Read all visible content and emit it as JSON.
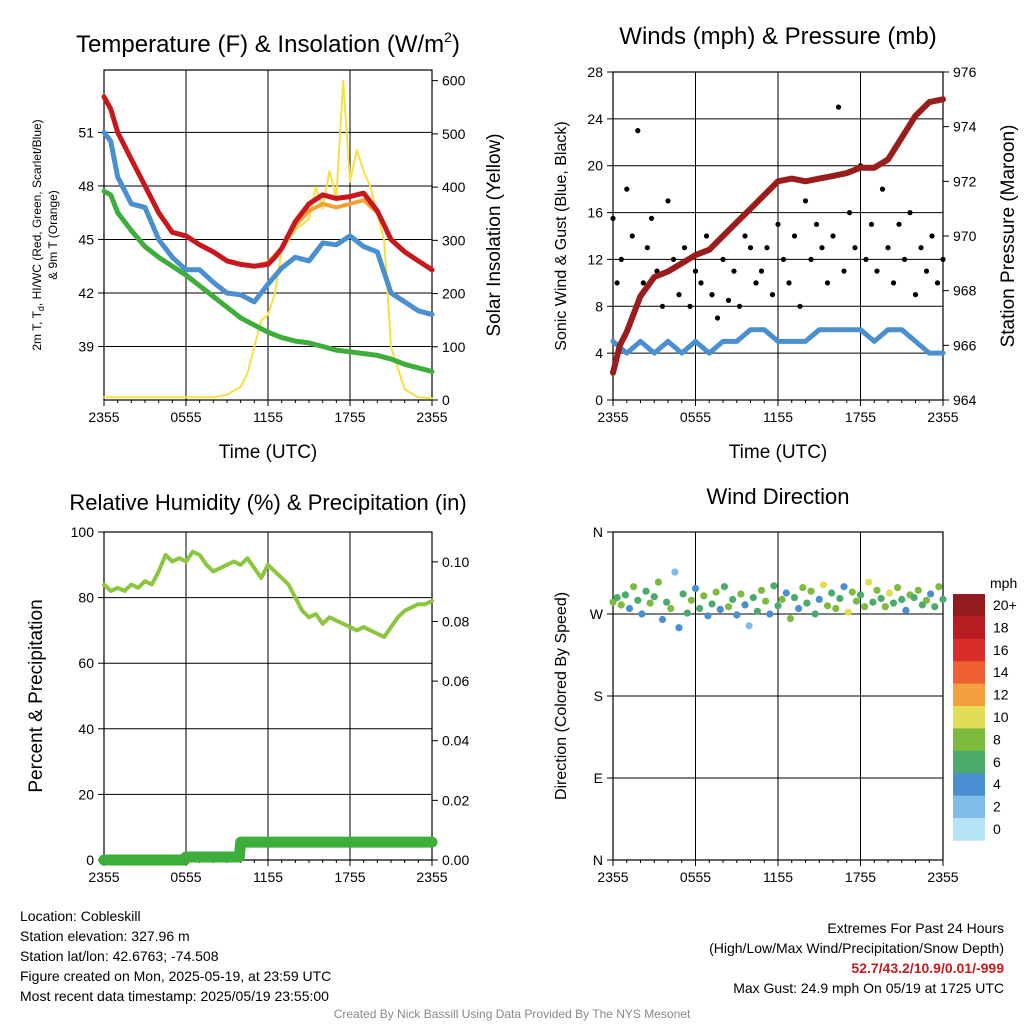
{
  "colors": {
    "temp_red": "#c8181e",
    "dewpoint_green": "#3eae3a",
    "hiwc_scarlet": "#e8401c",
    "temp9m_orange": "#f3a132",
    "wind_blue": "#4a8fcf",
    "solar_yellow": "#f8e040",
    "pressure_maroon": "#9b1c1c",
    "gust_black": "#000000",
    "rh_lightgreen": "#8cc63f",
    "precip_green": "#3eae3a",
    "extremes_red": "#c8181e"
  },
  "chart_data": [
    {
      "type": "line",
      "title": "Temperature (F) & Insolation (W/m²)",
      "title_main": "Temperature (F) & Insolation (W/m",
      "title_sup": "2",
      "title_end": ")",
      "xlabel": "Time (UTC)",
      "ylabel_left_line1": "2m T, T",
      "ylabel_left_sub": "d",
      "ylabel_left_line1_end": ", HI/WC (Red, Green, Scarlet/Blue)",
      "ylabel_left_line2": "& 9m T (Orange)",
      "ylabel_right": "Solar Insolation (Yellow)",
      "xticks": [
        "2355",
        "0555",
        "1155",
        "1755",
        "2355"
      ],
      "x_range_hours": [
        0,
        24
      ],
      "ylim_left": [
        36,
        54.5
      ],
      "yticks_left": [
        39,
        42,
        45,
        48,
        51
      ],
      "ylim_right": [
        0,
        620
      ],
      "yticks_right": [
        0,
        100,
        200,
        300,
        400,
        500,
        600
      ],
      "grid": true,
      "series": [
        {
          "name": "2m T",
          "axis": "left",
          "x": [
            0,
            0.5,
            1,
            2,
            3,
            4,
            5,
            6,
            7,
            8,
            9,
            10,
            11,
            12,
            12.5,
            13,
            14,
            15,
            16,
            17,
            18,
            19,
            20,
            21,
            22,
            23,
            24
          ],
          "values": [
            53,
            52.3,
            51,
            49.5,
            48,
            46.5,
            45.4,
            45.2,
            44.7,
            44.3,
            43.8,
            43.6,
            43.5,
            43.6,
            44,
            44.5,
            46,
            47,
            47.5,
            47.3,
            47.4,
            47.6,
            46.6,
            45,
            44.3,
            43.8,
            43.3
          ]
        },
        {
          "name": "Wind chill",
          "axis": "left",
          "x": [
            0,
            0.5,
            1,
            2,
            3,
            4,
            5,
            6,
            7,
            8,
            9,
            10,
            11,
            12,
            13,
            14,
            15,
            16,
            17,
            18,
            19,
            20,
            21,
            22,
            23,
            24
          ],
          "values": [
            51,
            50.5,
            48.5,
            47,
            46.8,
            45,
            44,
            43.3,
            43.3,
            42.6,
            42,
            41.9,
            41.5,
            42.5,
            43.4,
            44,
            43.8,
            44.8,
            44.7,
            45.2,
            44.6,
            44.3,
            42,
            41.5,
            41,
            40.8
          ]
        },
        {
          "name": "Dewpoint",
          "axis": "left",
          "x": [
            0,
            0.5,
            1,
            2,
            3,
            4,
            5,
            6,
            7,
            8,
            9,
            10,
            11,
            12,
            13,
            14,
            15,
            16,
            17,
            18,
            19,
            20,
            21,
            22,
            23,
            24
          ],
          "values": [
            47.7,
            47.5,
            46.5,
            45.5,
            44.6,
            44,
            43.5,
            43,
            42.4,
            41.8,
            41.2,
            40.6,
            40.2,
            39.8,
            39.5,
            39.3,
            39.2,
            39,
            38.8,
            38.7,
            38.6,
            38.5,
            38.3,
            38,
            37.8,
            37.6
          ]
        },
        {
          "name": "9m T",
          "axis": "left",
          "x": [
            11,
            12,
            13,
            14,
            15,
            16,
            17,
            18,
            19,
            20
          ],
          "values": [
            43.5,
            43.7,
            44.5,
            45.8,
            46.6,
            47,
            46.8,
            47,
            47.2,
            46.5
          ]
        },
        {
          "name": "Solar",
          "axis": "right",
          "x": [
            0,
            8,
            9,
            10,
            10.5,
            11,
            11.5,
            12,
            12.5,
            13,
            13.5,
            14,
            14.5,
            15,
            15.5,
            16,
            16.5,
            17,
            17.5,
            18,
            18.5,
            19,
            19.5,
            20,
            20.5,
            21,
            22,
            23,
            24
          ],
          "values": [
            5,
            5,
            10,
            25,
            50,
            100,
            150,
            160,
            200,
            280,
            300,
            320,
            330,
            340,
            400,
            360,
            430,
            380,
            600,
            410,
            470,
            430,
            400,
            350,
            300,
            100,
            20,
            5,
            3
          ]
        }
      ]
    },
    {
      "type": "scatter",
      "title": "Winds (mph) & Pressure (mb)",
      "xlabel": "Time (UTC)",
      "ylabel_left": "Sonic Wind & Gust (Blue, Black)",
      "ylabel_right": "Station Pressure (Maroon)",
      "xticks": [
        "2355",
        "0555",
        "1155",
        "1755",
        "2355"
      ],
      "x_range_hours": [
        0,
        24
      ],
      "ylim_left": [
        0,
        28
      ],
      "yticks_left": [
        0,
        4,
        8,
        12,
        16,
        20,
        24,
        28
      ],
      "ylim_right": [
        964,
        976
      ],
      "yticks_right": [
        964,
        966,
        968,
        970,
        972,
        974,
        976
      ],
      "grid": true,
      "series": [
        {
          "name": "Station pressure",
          "axis": "right",
          "x": [
            0,
            0.5,
            1,
            2,
            3,
            4,
            5,
            6,
            7,
            8,
            9,
            10,
            11,
            12,
            13,
            14,
            15,
            16,
            17,
            18,
            19,
            20,
            21,
            22,
            23,
            24
          ],
          "values": [
            965,
            966,
            966.5,
            967.8,
            968.5,
            968.7,
            969,
            969.3,
            969.5,
            970,
            970.5,
            971,
            971.5,
            972,
            972.1,
            972,
            972.1,
            972.2,
            972.3,
            972.5,
            972.5,
            972.8,
            973.6,
            974.4,
            974.9,
            975
          ]
        },
        {
          "name": "Sonic wind",
          "axis": "left",
          "x": [
            0,
            1,
            2,
            3,
            4,
            5,
            6,
            7,
            8,
            9,
            10,
            11,
            12,
            13,
            14,
            15,
            16,
            17,
            18,
            19,
            20,
            21,
            22,
            23,
            24
          ],
          "values": [
            5,
            4,
            5,
            4,
            5,
            4,
            5,
            4,
            5,
            5,
            6,
            6,
            5,
            5,
            5,
            6,
            6,
            6,
            6,
            5,
            6,
            6,
            5,
            4,
            4
          ]
        },
        {
          "name": "Gust",
          "axis": "left",
          "x": [
            0,
            0.3,
            0.6,
            1,
            1.4,
            1.8,
            2.2,
            2.5,
            2.8,
            3.2,
            3.6,
            4,
            4.4,
            4.8,
            5.2,
            5.6,
            6,
            6.4,
            6.8,
            7.2,
            7.6,
            8,
            8.4,
            8.8,
            9.2,
            9.6,
            10,
            10.4,
            10.8,
            11.2,
            11.6,
            12,
            12.4,
            12.8,
            13.2,
            13.6,
            14,
            14.4,
            14.8,
            15.2,
            15.6,
            16,
            16.4,
            16.8,
            17.2,
            17.6,
            18,
            18.4,
            18.8,
            19.2,
            19.6,
            20,
            20.4,
            20.8,
            21.2,
            21.6,
            22,
            22.4,
            22.8,
            23.2,
            23.6,
            24
          ],
          "values": [
            15.5,
            10,
            12,
            18,
            14,
            23,
            10,
            13,
            15.5,
            11,
            8,
            17,
            12,
            9,
            13,
            8,
            11,
            10,
            14,
            9,
            7,
            12,
            8.5,
            11,
            8,
            14,
            13,
            10,
            11,
            13,
            9,
            15,
            12,
            10,
            14,
            8,
            17,
            12,
            15,
            13,
            10,
            14,
            25,
            11,
            16,
            13,
            20,
            12,
            15,
            11,
            18,
            13,
            10,
            15,
            12,
            16,
            9,
            13,
            11,
            14,
            10,
            12
          ]
        }
      ]
    },
    {
      "type": "line",
      "title": "Relative Humidity (%) & Precipitation (in)",
      "xlabel": "",
      "ylabel_left": "Percent & Precipitation",
      "xticks": [
        "2355",
        "0555",
        "1155",
        "1755",
        "2355"
      ],
      "x_range_hours": [
        0,
        24
      ],
      "ylim_left": [
        0,
        100
      ],
      "yticks_left": [
        0,
        20,
        40,
        60,
        80,
        100
      ],
      "ylim_right": [
        0,
        0.11
      ],
      "yticks_right": [
        "0.00",
        "0.02",
        "0.04",
        "0.06",
        "0.08",
        "0.10"
      ],
      "grid": true,
      "series": [
        {
          "name": "RH",
          "axis": "left",
          "x": [
            0,
            0.5,
            1,
            1.5,
            2,
            2.5,
            3,
            3.5,
            4,
            4.5,
            5,
            5.5,
            6,
            6.5,
            7,
            7.5,
            8,
            8.5,
            9,
            9.5,
            10,
            10.5,
            11,
            11.5,
            12,
            12.5,
            13,
            13.5,
            14,
            14.5,
            15,
            15.5,
            16,
            16.5,
            17,
            17.5,
            18,
            18.5,
            19,
            19.5,
            20,
            20.5,
            21,
            21.5,
            22,
            22.5,
            23,
            23.5,
            24
          ],
          "values": [
            84,
            82,
            83,
            82,
            84,
            83,
            85,
            84,
            88,
            93,
            91,
            92,
            91,
            94,
            93,
            90,
            88,
            89,
            90,
            91,
            90,
            92,
            89,
            86,
            90,
            88,
            86,
            84,
            80,
            76,
            74,
            75,
            72,
            74,
            73,
            72,
            71,
            70,
            71,
            70,
            69,
            68,
            71,
            74,
            76,
            77,
            78,
            78,
            79
          ]
        },
        {
          "name": "Precipitation",
          "axis": "right",
          "x": [
            0,
            5.9,
            6,
            9.9,
            10,
            24
          ],
          "values": [
            0,
            0,
            0.001,
            0.001,
            0.006,
            0.006
          ]
        }
      ]
    },
    {
      "type": "scatter",
      "title": "Wind Direction",
      "xlabel": "",
      "ylabel_left": "Direction (Colored By Speed)",
      "xticks": [
        "2355",
        "0555",
        "1155",
        "1755",
        "2355"
      ],
      "x_range_hours": [
        0,
        24
      ],
      "ylim": [
        0,
        360
      ],
      "yticks": [
        "N",
        "E",
        "S",
        "W",
        "N"
      ],
      "yticks_deg": [
        0,
        90,
        180,
        270,
        360
      ],
      "grid": true,
      "colorbar_title": "mph",
      "colorbar_labels": [
        "0",
        "2",
        "4",
        "6",
        "8",
        "10",
        "12",
        "14",
        "16",
        "18",
        "20+"
      ],
      "colorbar_colors": [
        "#b7e3f7",
        "#7fbde8",
        "#4a8fcf",
        "#4aab6b",
        "#7dbb3e",
        "#e3dc55",
        "#f5a040",
        "#ee6030",
        "#d92d2a",
        "#b81d24",
        "#931b1e"
      ],
      "series": [
        {
          "name": "Direction",
          "x": [
            0,
            0.3,
            0.6,
            0.9,
            1.2,
            1.5,
            1.8,
            2.1,
            2.4,
            2.7,
            3,
            3.3,
            3.6,
            3.9,
            4.2,
            4.5,
            4.8,
            5.1,
            5.4,
            5.7,
            6,
            6.3,
            6.6,
            6.9,
            7.2,
            7.5,
            7.8,
            8.1,
            8.4,
            8.7,
            9,
            9.3,
            9.6,
            9.9,
            10.2,
            10.5,
            10.8,
            11.1,
            11.4,
            11.7,
            12,
            12.3,
            12.6,
            12.9,
            13.2,
            13.5,
            13.8,
            14.1,
            14.4,
            14.7,
            15,
            15.3,
            15.6,
            15.9,
            16.2,
            16.5,
            16.8,
            17.1,
            17.4,
            17.7,
            18,
            18.3,
            18.6,
            18.9,
            19.2,
            19.5,
            19.8,
            20.1,
            20.4,
            20.7,
            21,
            21.3,
            21.6,
            21.9,
            22.2,
            22.5,
            22.8,
            23.1,
            23.4,
            23.7,
            24
          ],
          "values": [
            283,
            288,
            280,
            291,
            276,
            300,
            285,
            270,
            295,
            282,
            289,
            305,
            264,
            283,
            276,
            316,
            255,
            292,
            271,
            285,
            298,
            276,
            290,
            268,
            281,
            294,
            275,
            300,
            278,
            286,
            269,
            292,
            280,
            257,
            288,
            273,
            296,
            284,
            270,
            301,
            279,
            286,
            293,
            265,
            288,
            276,
            299,
            282,
            295,
            270,
            286,
            302,
            279,
            293,
            276,
            287,
            300,
            272,
            294,
            284,
            291,
            278,
            305,
            283,
            296,
            287,
            278,
            293,
            282,
            299,
            286,
            274,
            291,
            288,
            296,
            280,
            285,
            292,
            278,
            300,
            286
          ],
          "speeds": [
            7,
            5,
            8,
            6,
            4,
            7,
            5,
            3,
            6,
            8,
            5,
            7,
            3,
            6,
            8,
            2,
            4,
            6,
            5,
            7,
            3,
            5,
            8,
            4,
            6,
            7,
            3,
            5,
            8,
            6,
            4,
            7,
            3,
            2,
            6,
            5,
            7,
            8,
            4,
            6,
            5,
            7,
            3,
            8,
            6,
            4,
            7,
            5,
            8,
            6,
            3,
            9,
            7,
            5,
            8,
            6,
            4,
            10,
            7,
            8,
            5,
            7,
            9,
            6,
            8,
            5,
            7,
            10,
            6,
            8,
            5,
            4,
            7,
            6,
            8,
            5,
            7,
            3,
            6,
            8,
            5
          ]
        }
      ]
    }
  ],
  "info": {
    "location": "Location: Cobleskill",
    "elevation": "Station elevation: 327.96 m",
    "latlon": "Station lat/lon: 42.6763; -74.508",
    "created": "Figure created on Mon, 2025-05-19, at 23:59 UTC",
    "recent": "Most recent data timestamp: 2025/05/19 23:55:00"
  },
  "extremes": {
    "title": "Extremes For Past 24 Hours",
    "subtitle": "(High/Low/Max Wind/Precipitation/Snow Depth)",
    "values": "52.7/43.2/10.9/0.01/-999",
    "max_gust": "Max Gust: 24.9 mph On 05/19 at 1725 UTC"
  },
  "credit": "Created By Nick Bassill Using Data Provided By The NYS Mesonet"
}
